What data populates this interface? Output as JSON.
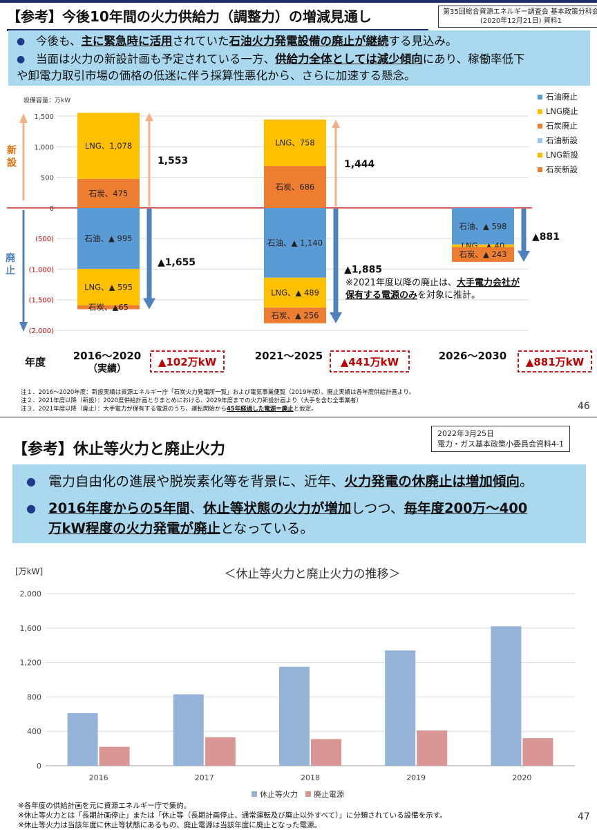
{
  "slide1": {
    "title": "【参考】今後10年間の火力供給力（調整力）の増減見通し",
    "source_line1": "第35回総合資源エネルギー調査会 基本政策分科会",
    "source_line2": "(2020年12月21日) 資料1",
    "bullet1": {
      "p1": "今後も、",
      "p2": "主に緊急時に活用",
      "p3": "されていた",
      "p4": "石油火力発電設備の廃止が継続",
      "p5": "する見込み。"
    },
    "bullet2": {
      "p1": "当面は火力の新設計画も予定されている一方、",
      "p2": "供給力全体としては減少傾向",
      "p3": "にあり、稼働率低下",
      "p4": "や卸電力取引市場の価格の低迷に伴う採算性悪化から、さらに加速する懸念。"
    },
    "unit_label": "設備容量：万kW",
    "side_label_new": "新設",
    "side_label_retire": "廃止",
    "year_label": "年度",
    "note_2021": {
      "p1": "※2021年度以降の廃止は、",
      "p2": "大手電力会社が",
      "p3": "保有する電源のみ",
      "p4": "を対象に推計。"
    },
    "notes": [
      "注１．2016～2020年度：新設実績は資源エネルギー庁「石炭火力発電所一覧」および電気事業便覧（2019年版）、廃止実績は各年度供給計画より。",
      "注２．2021年度以降（新設）：2020度供給計画とりまとめにおける、2029年度までの火力新設計画より（大手を含む全事業者）"
    ],
    "note3": {
      "p1": "注３．2021年度以降（廃止）：大手電力が保有する電源のうち、運転開始から",
      "p2": "45年経過した電源＝廃止",
      "p3": "と仮定。"
    },
    "page_number": "46"
  },
  "chart1": {
    "type": "bar",
    "ylim": [
      -2000,
      1500
    ],
    "yticks": [
      1500,
      1000,
      500,
      0,
      -500,
      -1000,
      -1500,
      -2000
    ],
    "ytick_labels": [
      "1,500",
      "1,000",
      "500",
      "0",
      "(500)",
      "(1,000)",
      "(1,500)",
      "(2,000)"
    ],
    "legend": [
      "石油廃止",
      "LNG廃止",
      "石炭廃止",
      "石油新設",
      "LNG新設",
      "石炭新設"
    ],
    "legend_position": "right",
    "colors": {
      "oil": "#5b9bd5",
      "lng": "#ffc000",
      "coal": "#ed7d31",
      "legend_oil_new": "#9dc3e6",
      "zero_line": "#c00000",
      "arrow_new": "#f4b183",
      "arrow_retire": "#4f81bd",
      "box": "#c00000"
    },
    "groups": [
      {
        "category_line1": "2016～2020",
        "category_line2": "（実績）",
        "segments": [
          {
            "fuel": "oil",
            "value": -995,
            "label": "石油、▲ 995"
          },
          {
            "fuel": "lng",
            "value": -595,
            "label": "LNG、▲ 595"
          },
          {
            "fuel": "coal",
            "value": -65,
            "label": "石炭、▲65"
          },
          {
            "fuel": "coal",
            "value": 475,
            "label": "石炭、475"
          },
          {
            "fuel": "lng",
            "value": 1078,
            "label": "LNG、1,078"
          }
        ],
        "new_total": 1553,
        "new_total_label": "1,553",
        "retire_total": -1655,
        "retire_total_label": "▲1,655",
        "net_label": "▲102万kW"
      },
      {
        "category_line1": "2021～2025",
        "category_line2": "",
        "segments": [
          {
            "fuel": "oil",
            "value": -1140,
            "label": "石油、▲ 1,140"
          },
          {
            "fuel": "lng",
            "value": -489,
            "label": "LNG、▲ 489"
          },
          {
            "fuel": "coal",
            "value": -256,
            "label": "石炭、▲ 256"
          },
          {
            "fuel": "coal",
            "value": 686,
            "label": "石炭、686"
          },
          {
            "fuel": "lng",
            "value": 758,
            "label": "LNG、758"
          }
        ],
        "new_total": 1444,
        "new_total_label": "1,444",
        "retire_total": -1885,
        "retire_total_label": "▲1,885",
        "net_label": "▲441万kW"
      },
      {
        "category_line1": "2026～2030",
        "category_line2": "",
        "segments": [
          {
            "fuel": "oil",
            "value": -598,
            "label": "石油、▲ 598"
          },
          {
            "fuel": "lng",
            "value": -40,
            "label": "LNG、▲ 40"
          },
          {
            "fuel": "coal",
            "value": -243,
            "label": "石炭、▲ 243"
          }
        ],
        "new_total": 0,
        "new_total_label": "",
        "retire_total": -881,
        "retire_total_label": "▲881",
        "net_label": "▲881万kW"
      }
    ]
  },
  "slide2": {
    "title": "【参考】休止等火力と廃止火力",
    "source_line1": "2022年3月25日",
    "source_line2": "電力・ガス基本政策小委員会資料4-1",
    "bullet1": {
      "p1": "電力自由化の進展や脱炭素化等を背景に、近年、",
      "p2": "火力発電の休廃止は増加傾向",
      "p3": "。"
    },
    "bullet2": {
      "p1": "2016年度からの5年間",
      "p2": "、",
      "p3": "休止等状態の火力が増加",
      "p4": "しつつ、",
      "p5": "毎年度200万～400",
      "p6": "万kW程度の火力発電が廃止",
      "p7": "となっている。"
    },
    "notes": [
      "※各年度の供給計画を元に資源エネルギー庁で集約。",
      "※休止等火力とは「長期計画停止」または「休止等（長期計画停止、通常運転及び廃止以外すべて）」に分類されている設備を示す。",
      "※休止等火力は当該年度に休止等状態にあるもの、廃止電源は当該年度に廃止となった電源。"
    ],
    "page_number": "47"
  },
  "chart2": {
    "type": "bar",
    "title": "＜休止等火力と廃止火力の推移＞",
    "ylabel": "[万kW]",
    "ylim": [
      0,
      2000
    ],
    "yticks": [
      0,
      400,
      800,
      1200,
      1600,
      2000
    ],
    "ytick_labels": [
      "0",
      "400",
      "800",
      "1,200",
      "1,600",
      "2,000"
    ],
    "categories": [
      "2016",
      "2017",
      "2018",
      "2019",
      "2020"
    ],
    "series": [
      {
        "name": "休止等火力",
        "color": "#95b3d7",
        "values": [
          610,
          830,
          1150,
          1340,
          1620
        ]
      },
      {
        "name": "廃止電源",
        "color": "#da9694",
        "values": [
          220,
          330,
          310,
          410,
          320
        ]
      }
    ],
    "legend_position": "bottom"
  }
}
